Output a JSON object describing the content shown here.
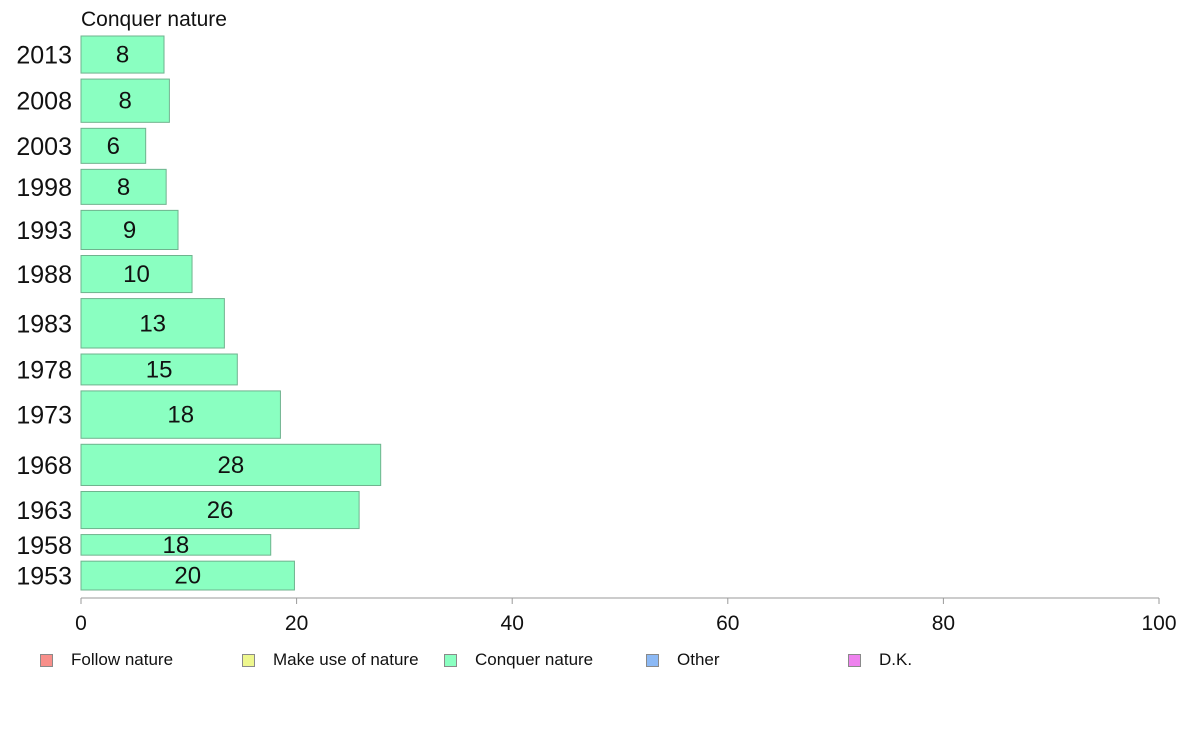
{
  "chart_data": {
    "type": "bar",
    "orientation": "horizontal",
    "title": "Conquer nature",
    "xlabel": "",
    "ylabel": "",
    "xlim": [
      0,
      100
    ],
    "x_ticks": [
      0,
      20,
      40,
      60,
      80,
      100
    ],
    "grid": false,
    "categories": [
      "2013",
      "2008",
      "2003",
      "1998",
      "1993",
      "1988",
      "1983",
      "1978",
      "1973",
      "1968",
      "1963",
      "1958",
      "1953"
    ],
    "values": [
      7.7,
      8.2,
      6.0,
      7.9,
      9.0,
      10.3,
      13.3,
      14.5,
      18.5,
      27.8,
      25.8,
      17.6,
      19.8
    ],
    "data_labels": [
      "8",
      "8",
      "6",
      "8",
      "9",
      "10",
      "13",
      "15",
      "18",
      "28",
      "26",
      "18",
      "20"
    ],
    "sample_weights": [
      0.9,
      1.05,
      0.85,
      0.85,
      0.95,
      0.9,
      1.2,
      0.75,
      1.15,
      1.0,
      0.9,
      0.5,
      0.7
    ],
    "bar_color": "#8affc1",
    "legend_position": "bottom",
    "legend": [
      {
        "name": "Follow nature",
        "color": "#f88f8a"
      },
      {
        "name": "Make use of nature",
        "color": "#eef78e"
      },
      {
        "name": "Conquer nature",
        "color": "#8affc1"
      },
      {
        "name": "Other",
        "color": "#8cb9f5"
      },
      {
        "name": "D.K.",
        "color": "#ee82ee"
      }
    ]
  }
}
